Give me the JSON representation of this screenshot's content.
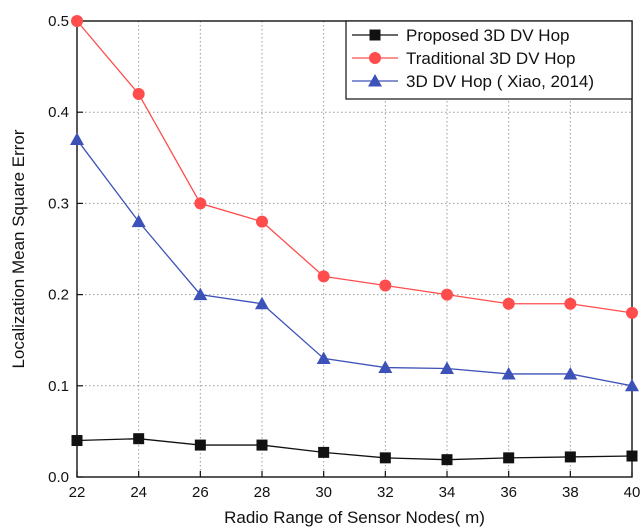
{
  "chart_data": {
    "type": "line",
    "title": "",
    "xlabel": "Radio Range of Sensor Nodes( m)",
    "ylabel": "Localization Mean Square Error",
    "x": [
      22,
      24,
      26,
      28,
      30,
      32,
      34,
      36,
      38,
      40
    ],
    "xticks": [
      "22",
      "24",
      "26",
      "28",
      "30",
      "32",
      "34",
      "36",
      "38",
      "40"
    ],
    "yticks": [
      "0.0",
      "0.1",
      "0.2",
      "0.3",
      "0.4",
      "0.5"
    ],
    "xlim": [
      22,
      40
    ],
    "ylim": [
      0,
      0.5
    ],
    "grid": true,
    "legend_position": "top-right",
    "series": [
      {
        "name": "Proposed 3D DV Hop",
        "color": "#111111",
        "marker": "square",
        "values": [
          0.04,
          0.042,
          0.035,
          0.035,
          0.027,
          0.021,
          0.019,
          0.021,
          0.022,
          0.023
        ]
      },
      {
        "name": "Traditional 3D DV Hop",
        "color": "#ff4d4d",
        "marker": "circle",
        "values": [
          0.5,
          0.42,
          0.3,
          0.28,
          0.22,
          0.21,
          0.2,
          0.19,
          0.19,
          0.18
        ]
      },
      {
        "name": "3D DV Hop ( Xiao, 2014)",
        "color": "#3d52b8",
        "marker": "triangle",
        "values": [
          0.37,
          0.28,
          0.2,
          0.19,
          0.13,
          0.12,
          0.119,
          0.113,
          0.113,
          0.1
        ]
      }
    ]
  }
}
